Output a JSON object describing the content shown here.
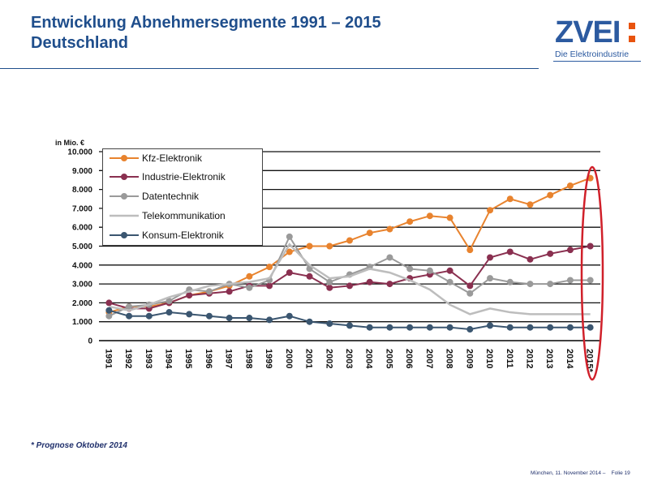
{
  "header": {
    "title_line1": "Entwicklung Abnehmersegmente 1991 – 2015",
    "title_line2": "Deutschland"
  },
  "logo": {
    "wordmark": "ZVEI",
    "subtitle": "Die Elektroindustrie"
  },
  "footnote": "* Prognose Oktober 2014",
  "footer": {
    "place_date": "München, 11. November 2014",
    "separator": "–",
    "slide": "Folie 19"
  },
  "colors": {
    "title": "#1f4e8c",
    "kfz": "#e8832e",
    "industrie": "#8a3050",
    "daten": "#9a9a9a",
    "telekom": "#bdbdbd",
    "konsum": "#3b5670",
    "highlight": "#d0202a"
  },
  "chart_data": {
    "type": "line",
    "ylabel": "in Mio. €",
    "xlabel": "",
    "ylim": [
      0,
      10000
    ],
    "y_ticks": [
      "0",
      "1.000",
      "2.000",
      "3.000",
      "4.000",
      "5.000",
      "6.000",
      "7.000",
      "8.000",
      "9.000",
      "10.000"
    ],
    "grid": "horizontal",
    "legend_position": "top-left",
    "categories": [
      "1991",
      "1992",
      "1993",
      "1994",
      "1995",
      "1996",
      "1997",
      "1998",
      "1999",
      "2000",
      "2001",
      "2002",
      "2003",
      "2004",
      "2005",
      "2006",
      "2007",
      "2008",
      "2009",
      "2010",
      "2011",
      "2012",
      "2013",
      "2014",
      "2015*"
    ],
    "highlighted_category": "2015*",
    "series": [
      {
        "name": "Kfz-Elektronik",
        "color_key": "kfz",
        "values": [
          1500,
          1800,
          1800,
          2000,
          2400,
          2600,
          2900,
          3400,
          3900,
          4700,
          5000,
          5000,
          5300,
          5700,
          5900,
          6300,
          6600,
          6500,
          4800,
          6900,
          7500,
          7200,
          7700,
          8200,
          8600
        ]
      },
      {
        "name": "Industrie-Elektronik",
        "color_key": "industrie",
        "values": [
          2000,
          1700,
          1700,
          2000,
          2400,
          2500,
          2600,
          2900,
          2900,
          3600,
          3400,
          2800,
          2900,
          3100,
          3000,
          3300,
          3500,
          3700,
          2900,
          4400,
          4700,
          4300,
          4600,
          4800,
          5000
        ]
      },
      {
        "name": "Datentechnik",
        "color_key": "daten",
        "values": [
          1300,
          1800,
          1900,
          2100,
          2700,
          2600,
          3000,
          2800,
          3200,
          5500,
          3800,
          3100,
          3500,
          3900,
          4400,
          3800,
          3700,
          3100,
          2500,
          3300,
          3100,
          3000,
          3000,
          3200,
          3200
        ]
      },
      {
        "name": "Telekommunikation",
        "color_key": "telekom",
        "values": [
          1800,
          1600,
          1900,
          2300,
          2600,
          2900,
          3000,
          3100,
          3300,
          5100,
          4000,
          3300,
          3400,
          3800,
          3600,
          3200,
          2700,
          1900,
          1400,
          1700,
          1500,
          1400,
          1400,
          1400,
          1400
        ]
      },
      {
        "name": "Konsum-Elektronik",
        "color_key": "konsum",
        "values": [
          1600,
          1300,
          1300,
          1500,
          1400,
          1300,
          1200,
          1200,
          1100,
          1300,
          1000,
          900,
          800,
          700,
          700,
          700,
          700,
          700,
          600,
          800,
          700,
          700,
          700,
          700,
          700
        ]
      }
    ]
  }
}
